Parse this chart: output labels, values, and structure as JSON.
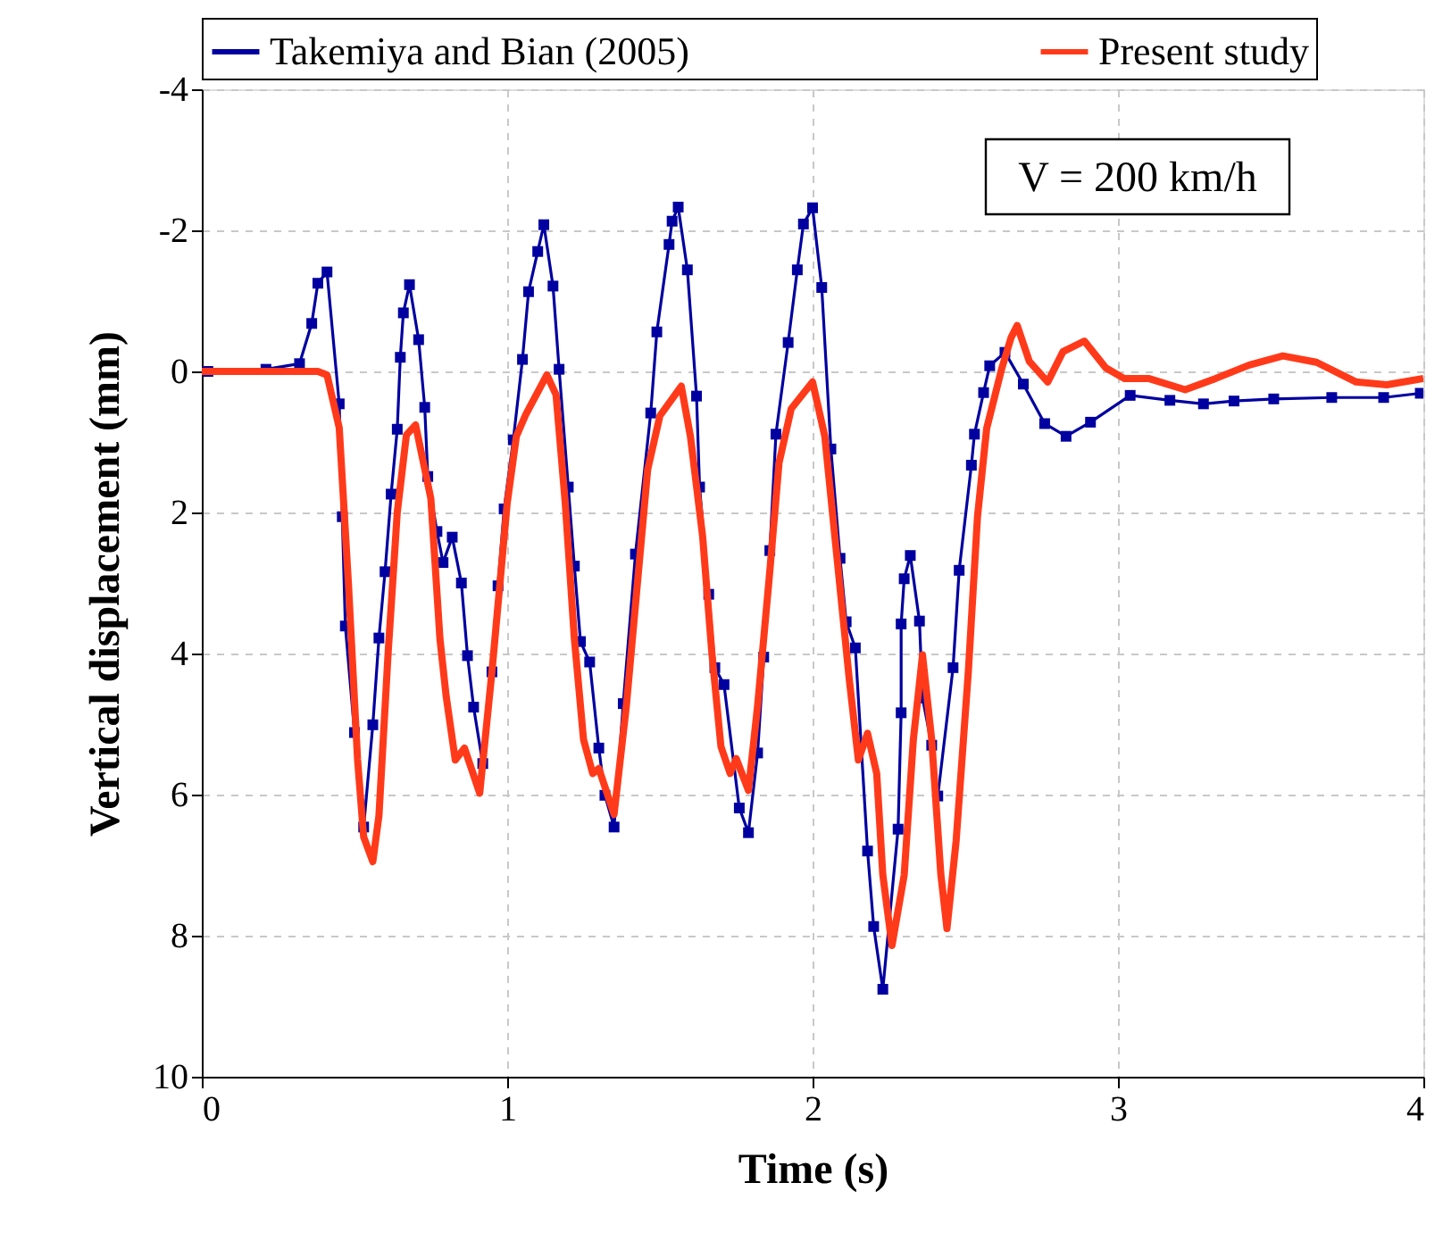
{
  "chart_data": {
    "type": "line",
    "xlabel": "Time (s)",
    "ylabel": "Vertical displacement (mm)",
    "xlim": [
      0,
      4
    ],
    "xticks": [
      0,
      1,
      2,
      3,
      4
    ],
    "ylim": [
      10,
      -4
    ],
    "yticks": [
      -4,
      -2,
      0,
      2,
      4,
      6,
      8,
      10
    ],
    "grid": true,
    "legend": "top",
    "annotations": [
      "V = 200 km/h"
    ],
    "series": [
      {
        "name": "Takemiya and Bian (2005)",
        "color": "#0000a0",
        "marker": "square",
        "x": [
          0.02,
          0.21,
          0.32,
          0.36,
          0.38,
          0.41,
          0.45,
          0.46,
          0.47,
          0.5,
          0.53,
          0.56,
          0.58,
          0.6,
          0.62,
          0.64,
          0.65,
          0.66,
          0.68,
          0.71,
          0.73,
          0.74,
          0.77,
          0.79,
          0.82,
          0.85,
          0.87,
          0.89,
          0.92,
          0.95,
          0.97,
          0.99,
          1.02,
          1.05,
          1.07,
          1.1,
          1.12,
          1.15,
          1.17,
          1.2,
          1.22,
          1.24,
          1.27,
          1.3,
          1.32,
          1.35,
          1.38,
          1.42,
          1.47,
          1.49,
          1.53,
          1.54,
          1.56,
          1.59,
          1.62,
          1.63,
          1.66,
          1.68,
          1.71,
          1.76,
          1.79,
          1.82,
          1.84,
          1.86,
          1.88,
          1.92,
          1.95,
          1.97,
          2.0,
          2.03,
          2.06,
          2.09,
          2.11,
          2.14,
          2.18,
          2.2,
          2.23,
          2.28,
          2.29,
          2.29,
          2.3,
          2.32,
          2.35,
          2.36,
          2.39,
          2.41,
          2.46,
          2.48,
          2.52,
          2.53,
          2.56,
          2.58,
          2.63,
          2.69,
          2.76,
          2.83,
          2.91,
          3.04,
          3.17,
          3.28,
          3.38,
          3.51,
          3.7,
          3.87,
          3.99
        ],
        "values": [
          0.0,
          -0.03,
          -0.11,
          -0.68,
          -1.25,
          -1.41,
          0.46,
          2.06,
          3.61,
          5.12,
          6.46,
          5.01,
          3.78,
          2.84,
          1.74,
          0.82,
          -0.2,
          -0.83,
          -1.23,
          -0.45,
          0.51,
          1.49,
          2.27,
          2.71,
          2.35,
          3.0,
          4.03,
          4.76,
          5.56,
          4.26,
          3.04,
          1.95,
          0.97,
          -0.17,
          -1.13,
          -1.7,
          -2.08,
          -1.21,
          -0.03,
          1.64,
          2.76,
          3.83,
          4.12,
          5.34,
          6.01,
          6.46,
          4.71,
          2.59,
          0.59,
          -0.56,
          -1.8,
          -2.13,
          -2.33,
          -1.44,
          0.35,
          1.64,
          3.16,
          4.2,
          4.44,
          6.19,
          6.54,
          5.41,
          4.05,
          2.54,
          0.89,
          -0.41,
          -1.44,
          -2.09,
          -2.32,
          -1.19,
          1.1,
          2.65,
          3.55,
          3.92,
          6.8,
          7.87,
          8.76,
          6.49,
          4.84,
          3.58,
          2.94,
          2.61,
          3.54,
          4.63,
          5.3,
          6.02,
          4.2,
          2.82,
          1.33,
          0.89,
          0.3,
          -0.08,
          -0.27,
          0.18,
          0.74,
          0.92,
          0.72,
          0.34,
          0.41,
          0.46,
          0.42,
          0.39,
          0.37,
          0.37,
          0.31
        ]
      },
      {
        "name": "Present study",
        "color": "#ff3a1a",
        "marker": "none",
        "x": [
          0.0,
          0.38,
          0.41,
          0.45,
          0.48,
          0.51,
          0.53,
          0.56,
          0.58,
          0.61,
          0.64,
          0.67,
          0.7,
          0.75,
          0.78,
          0.8,
          0.83,
          0.86,
          0.91,
          0.95,
          1.0,
          1.03,
          1.06,
          1.13,
          1.16,
          1.19,
          1.22,
          1.25,
          1.28,
          1.3,
          1.35,
          1.39,
          1.43,
          1.46,
          1.5,
          1.57,
          1.6,
          1.64,
          1.67,
          1.7,
          1.73,
          1.75,
          1.79,
          1.82,
          1.86,
          1.89,
          1.93,
          2.0,
          2.04,
          2.08,
          2.12,
          2.15,
          2.18,
          2.21,
          2.23,
          2.26,
          2.3,
          2.33,
          2.36,
          2.39,
          2.42,
          2.44,
          2.47,
          2.51,
          2.54,
          2.57,
          2.62,
          2.65,
          2.67,
          2.71,
          2.77,
          2.82,
          2.89,
          2.96,
          3.02,
          3.1,
          3.22,
          3.32,
          3.43,
          3.54,
          3.65,
          3.78,
          3.88,
          4.0
        ],
        "values": [
          0.0,
          0.0,
          0.05,
          0.8,
          3.0,
          5.5,
          6.6,
          6.95,
          6.3,
          4.0,
          2.0,
          0.9,
          0.76,
          1.8,
          3.8,
          4.6,
          5.51,
          5.34,
          5.98,
          4.26,
          1.87,
          0.92,
          0.62,
          0.05,
          0.33,
          1.86,
          3.79,
          5.22,
          5.7,
          5.63,
          6.28,
          4.75,
          2.83,
          1.39,
          0.63,
          0.21,
          0.92,
          2.34,
          3.98,
          5.32,
          5.7,
          5.49,
          5.94,
          4.74,
          2.83,
          1.3,
          0.53,
          0.15,
          0.92,
          2.64,
          4.36,
          5.51,
          5.13,
          5.7,
          7.14,
          8.14,
          7.14,
          5.22,
          4.02,
          5.22,
          7.13,
          7.9,
          6.66,
          4.26,
          2.06,
          0.81,
          -0.05,
          -0.48,
          -0.65,
          -0.14,
          0.15,
          -0.28,
          -0.43,
          -0.05,
          0.1,
          0.1,
          0.26,
          0.1,
          -0.09,
          -0.22,
          -0.13,
          0.15,
          0.19,
          0.1
        ]
      }
    ]
  }
}
